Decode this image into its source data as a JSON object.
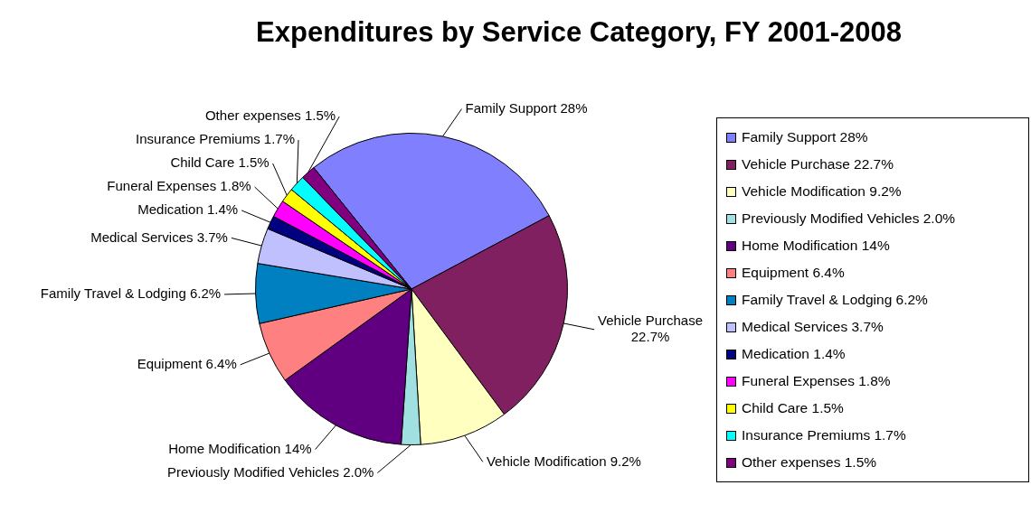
{
  "chart_data": {
    "type": "pie",
    "title": "Expenditures by Service Category, FY 2001-2008",
    "categories": [
      "Family Support",
      "Vehicle Purchase",
      "Vehicle Modification",
      "Previously Modified Vehicles",
      "Home Modification",
      "Equipment",
      "Family Travel & Lodging",
      "Medical Services",
      "Medication",
      "Funeral Expenses",
      "Child Care",
      "Insurance Premiums",
      "Other expenses"
    ],
    "values": [
      28,
      22.7,
      9.2,
      2.0,
      14,
      6.4,
      6.2,
      3.7,
      1.4,
      1.8,
      1.5,
      1.7,
      1.5
    ],
    "value_labels": [
      "28%",
      "22.7%",
      "9.2%",
      "2.0%",
      "14%",
      "6.4%",
      "6.2%",
      "3.7%",
      "1.4%",
      "1.8%",
      "1.5%",
      "1.7%",
      "1.5%"
    ],
    "colors": [
      "#8080ff",
      "#802060",
      "#ffffc0",
      "#a0e0e0",
      "#600080",
      "#ff8080",
      "#0080c0",
      "#c0c0ff",
      "#000080",
      "#ff00ff",
      "#ffff00",
      "#00ffff",
      "#800080"
    ],
    "legend": "right"
  }
}
